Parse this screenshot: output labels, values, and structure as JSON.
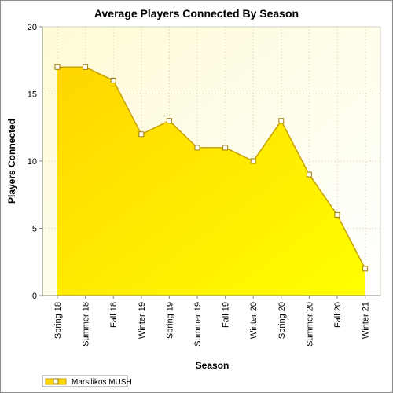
{
  "chart_data": {
    "type": "area",
    "title": "Average Players Connected By Season",
    "xlabel": "Season",
    "ylabel": "Players Connected",
    "categories": [
      "Spring 18",
      "Summer 18",
      "Fall 18",
      "Winter 19",
      "Spring 19",
      "Summer 19",
      "Fall 19",
      "Winter 20",
      "Spring 20",
      "Summer 20",
      "Fall 20",
      "Winter 21"
    ],
    "series": [
      {
        "name": "Marsilikos MUSH",
        "values": [
          17,
          17,
          16,
          12,
          13,
          11,
          11,
          10,
          13,
          9,
          6,
          2
        ]
      }
    ],
    "ylim": [
      0,
      20
    ],
    "yticks": [
      "0",
      "5",
      "10",
      "15",
      "20"
    ],
    "grid": true,
    "legend_position": "bottom-left",
    "colors": {
      "plot_bg_top": "#fffbd6",
      "plot_bg_bottom": "#ffffff",
      "fill_top": "#ffd500",
      "fill_bottom": "#ffff00",
      "line": "#c8a000",
      "marker_fill": "#ffffff",
      "marker_stroke": "#a08000"
    }
  }
}
